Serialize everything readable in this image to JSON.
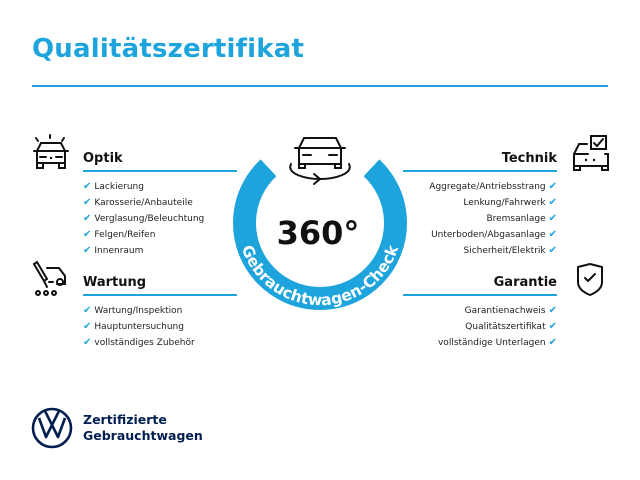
{
  "title": "Qualitätszertifikat",
  "colors": {
    "accent": "#1ea4dc",
    "brand": "#001e50"
  },
  "center": {
    "degrees": "360°",
    "ring_text": "Gebrauchtwagen-Check",
    "icon": "car-rotate-icon"
  },
  "sections": {
    "optik": {
      "heading": "Optik",
      "icon": "car-lights-icon",
      "items": [
        "Lackierung",
        "Karosserie/Anbauteile",
        "Verglasung/Beleuchtung",
        "Felgen/Reifen",
        "Innenraum"
      ]
    },
    "wartung": {
      "heading": "Wartung",
      "icon": "tools-car-icon",
      "items": [
        "Wartung/Inspektion",
        "Hauptuntersuchung",
        "vollständiges Zubehör"
      ]
    },
    "technik": {
      "heading": "Technik",
      "icon": "car-checkbox-icon",
      "items": [
        "Aggregate/Antriebsstrang",
        "Lenkung/Fahrwerk",
        "Bremsanlage",
        "Unterboden/Abgasanlage",
        "Sicherheit/Elektrik"
      ]
    },
    "garantie": {
      "heading": "Garantie",
      "icon": "shield-check-icon",
      "items": [
        "Garantienachweis",
        "Qualitätszertifikat",
        "vollständige Unterlagen"
      ]
    }
  },
  "check_glyph": "✔",
  "brand": {
    "line1": "Zertifizierte",
    "line2": "Gebrauchtwagen"
  }
}
